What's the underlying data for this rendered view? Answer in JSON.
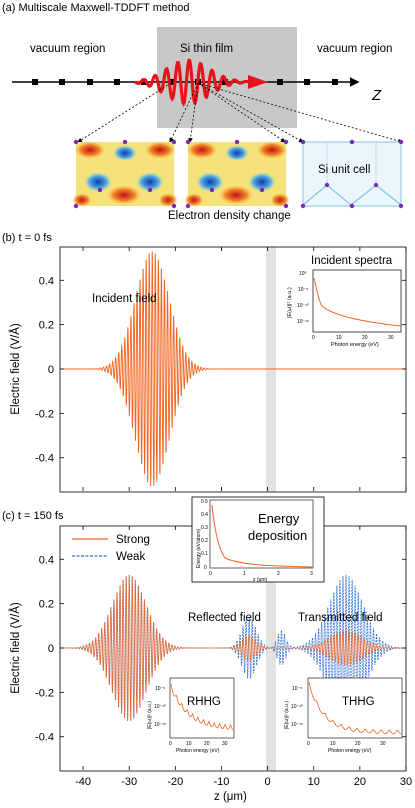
{
  "panel_a": {
    "label": "(a) Multiscale Maxwell-TDDFT method",
    "vacuum_left": "vacuum region",
    "film": "Si thin film",
    "vacuum_right": "vacuum region",
    "z_axis": "Z",
    "unit_cell": "Si unit cell",
    "density_caption": "Electron density change"
  },
  "panel_b": {
    "label": "(b) t = 0 fs",
    "field_label": "Incident field",
    "inset_title": "Incident spectra",
    "inset_xlabel": "Photon energy (eV)",
    "inset_ylabel": "|E(ω)|² (a.u.)",
    "inset_xticks": [
      "0",
      "10",
      "20",
      "30"
    ],
    "inset_yticks": [
      "10⁰",
      "10⁻⁵",
      "10⁻¹⁰",
      "10⁻¹⁵"
    ]
  },
  "panel_c": {
    "label": "(c) t = 150 fs",
    "legend_strong": "Strong",
    "legend_weak": "Weak",
    "reflected": "Reflected field",
    "transmitted": "Transmitted field",
    "energy_title_1": "Energy",
    "energy_title_2": "deposition",
    "energy_xlabel": "z (μm)",
    "energy_ylabel": "Energy (eV/atom)",
    "energy_xticks": [
      "0",
      "1",
      "2",
      "3"
    ],
    "energy_yticks": [
      "0",
      "0.1",
      "0.2",
      "0.3",
      "0.4",
      "0.5"
    ],
    "rhhg": "RHHG",
    "thhg": "THHG",
    "hhg_xlabel": "Photon energy (eV)",
    "hhg_ylabel": "|E(ω)|² (a.u.)",
    "hhg_xticks": [
      "0",
      "10",
      "20",
      "30"
    ],
    "hhg_yticks": [
      "10⁻⁵",
      "10⁻¹⁰",
      "10⁻¹⁵"
    ]
  },
  "axes": {
    "ylabel": "Electric field (V/Å)",
    "xlabel": "z (μm)",
    "yticks": [
      "0.4",
      "0.2",
      "0",
      "-0.2",
      "-0.4"
    ],
    "xticks": [
      "-40",
      "-30",
      "-20",
      "-10",
      "0",
      "10",
      "20",
      "30"
    ]
  },
  "colors": {
    "strong": "#f26522",
    "weak": "#2f6fd6",
    "film": "#d0d0d0",
    "arrow": "#e8141a",
    "dots": "#7a2ab5"
  },
  "chart_data": [
    {
      "type": "line",
      "title": "t = 0 fs",
      "xlabel": "z (μm)",
      "ylabel": "Electric field (V/Å)",
      "xlim": [
        -45,
        30
      ],
      "ylim": [
        -0.55,
        0.55
      ],
      "series": [
        {
          "name": "Incident field",
          "center": -25,
          "amplitude": 0.53
        }
      ]
    },
    {
      "type": "line",
      "title": "t = 150 fs",
      "xlabel": "z (μm)",
      "ylabel": "Electric field (V/Å)",
      "xlim": [
        -45,
        30
      ],
      "ylim": [
        -0.55,
        0.55
      ],
      "series": [
        {
          "name": "Strong",
          "reflected_center": -30,
          "reflected_amplitude": 0.33,
          "transmitted_center": 17,
          "transmitted_amplitude": 0.08
        },
        {
          "name": "Weak",
          "reflected_center": -30,
          "reflected_amplitude": 0.33,
          "transmitted_center": 17,
          "transmitted_amplitude": 0.33
        }
      ]
    }
  ]
}
